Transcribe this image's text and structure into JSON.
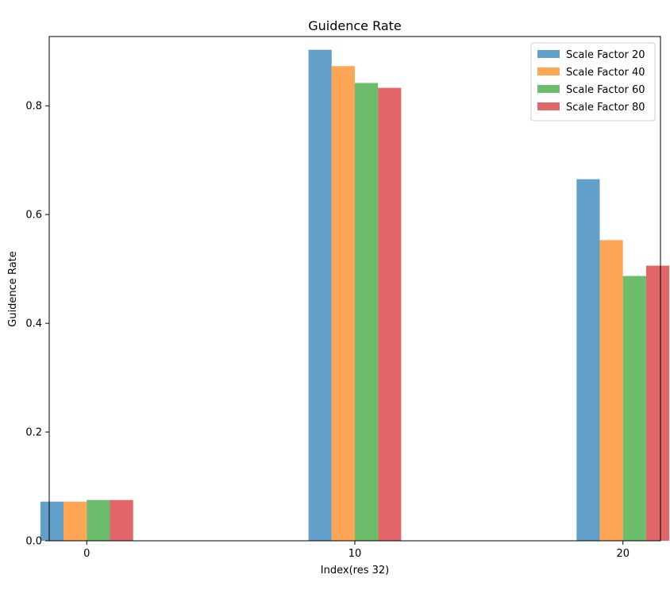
{
  "chart_data": {
    "type": "bar",
    "title": "Guidence Rate",
    "xlabel": "Index(res 32)",
    "ylabel": "Guidence Rate",
    "categories": [
      "0",
      "10",
      "20"
    ],
    "ylim": [
      0,
      0.9274
    ],
    "yticks": [
      "0.0",
      "0.2",
      "0.4",
      "0.6",
      "0.8"
    ],
    "grid": false,
    "legend_position": "top-right",
    "series": [
      {
        "name": "Scale Factor 20",
        "color": "#1f77b4",
        "values": [
          0.072,
          0.903,
          0.665
        ]
      },
      {
        "name": "Scale Factor 40",
        "color": "#ff7f0e",
        "values": [
          0.072,
          0.873,
          0.553
        ]
      },
      {
        "name": "Scale Factor 60",
        "color": "#2ca02c",
        "values": [
          0.075,
          0.842,
          0.487
        ]
      },
      {
        "name": "Scale Factor 80",
        "color": "#d62728",
        "values": [
          0.075,
          0.833,
          0.506
        ]
      }
    ]
  }
}
